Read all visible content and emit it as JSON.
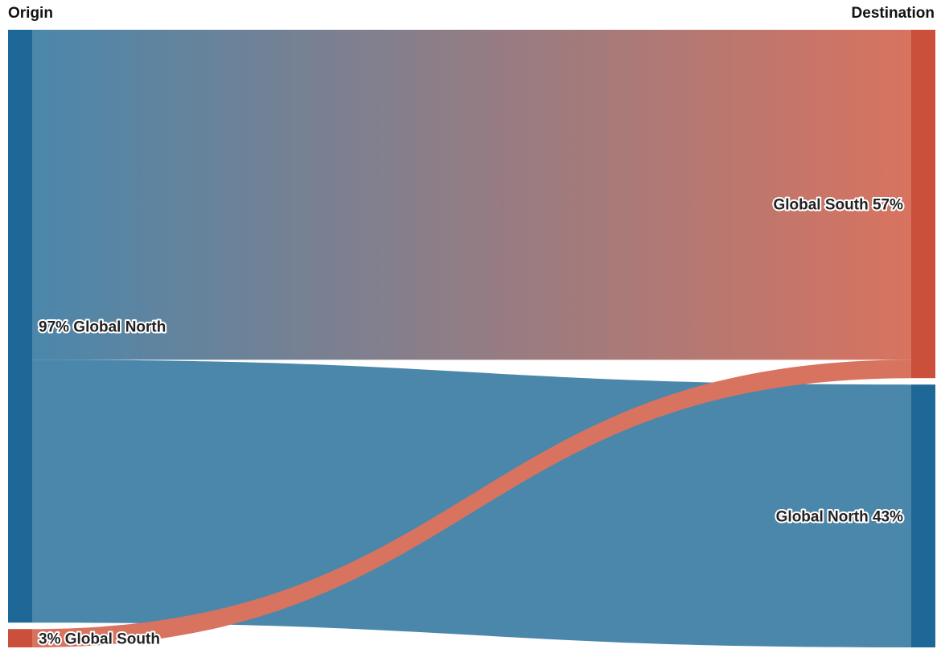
{
  "headers": {
    "origin": "Origin",
    "destination": "Destination"
  },
  "colors": {
    "north": "#1d6896",
    "south": "#cb503b",
    "north_flow": "#4b87ab",
    "south_flow": "#d8735f"
  },
  "chart_data": {
    "type": "sankey",
    "columns": [
      "Origin",
      "Destination"
    ],
    "nodes": {
      "origin": [
        {
          "id": "origin-north",
          "name": "Global North",
          "percent": 97,
          "label": "97% Global North",
          "color": "north"
        },
        {
          "id": "origin-south",
          "name": "Global South",
          "percent": 3,
          "label": "3% Global South",
          "color": "south"
        }
      ],
      "destination": [
        {
          "id": "dest-south",
          "name": "Global South",
          "percent": 57,
          "label": "Global South 57%",
          "color": "south"
        },
        {
          "id": "dest-north",
          "name": "Global North",
          "percent": 43,
          "label": "Global North 43%",
          "color": "north"
        }
      ]
    },
    "links": [
      {
        "source": "origin-north",
        "target": "dest-south",
        "value": 54
      },
      {
        "source": "origin-north",
        "target": "dest-north",
        "value": 43
      },
      {
        "source": "origin-south",
        "target": "dest-south",
        "value": 3
      }
    ]
  }
}
